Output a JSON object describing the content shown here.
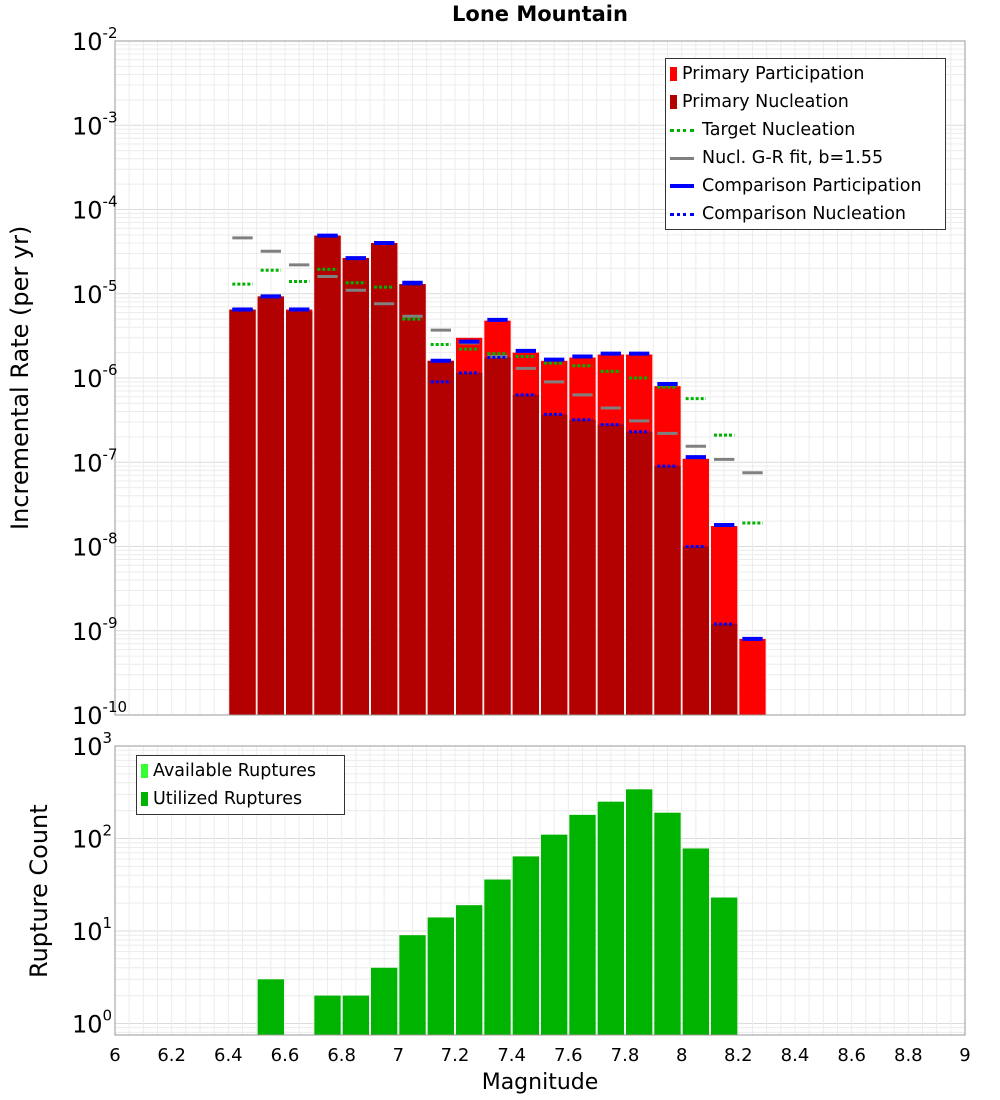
{
  "title": "Lone Mountain",
  "chart_data": [
    {
      "type": "bar",
      "title": "Lone Mountain",
      "xlabel": "Magnitude",
      "ylabel": "Incremental Rate (per yr)",
      "y_scale": "log",
      "xlim": [
        6,
        9
      ],
      "ylim": [
        1e-10,
        0.01
      ],
      "x_ticks": [
        "6",
        "6.2",
        "6.4",
        "6.6",
        "6.8",
        "7",
        "7.2",
        "7.4",
        "7.6",
        "7.8",
        "8",
        "8.2",
        "8.4",
        "8.6",
        "8.8",
        "9"
      ],
      "y_tick_exponents": [
        "-10",
        "-9",
        "-8",
        "-7",
        "-6",
        "-5",
        "-4",
        "-3",
        "-2"
      ],
      "grid": true,
      "legend_position": "top-right",
      "bin_width": 0.1,
      "x": [
        6.45,
        6.55,
        6.65,
        6.75,
        6.85,
        6.95,
        7.05,
        7.15,
        7.25,
        7.35,
        7.45,
        7.55,
        7.65,
        7.75,
        7.85,
        7.95,
        8.05,
        8.15,
        8.25
      ],
      "series": [
        {
          "name": "Primary Participation",
          "style": "bar",
          "color": "#ff0000",
          "values": [
            6.5e-06,
            9.3e-06,
            6.5e-06,
            4.9e-05,
            2.65e-05,
            4e-05,
            1.3e-05,
            1.6e-06,
            3e-06,
            4.8e-06,
            2e-06,
            1.6e-06,
            1.75e-06,
            1.9e-06,
            1.9e-06,
            8e-07,
            1.1e-07,
            1.75e-08,
            8e-10
          ]
        },
        {
          "name": "Primary Nucleation",
          "style": "bar",
          "color": "#b30000",
          "values": [
            6.5e-06,
            9.3e-06,
            6.2e-06,
            4.9e-05,
            2.65e-05,
            4e-05,
            1.3e-05,
            1.6e-06,
            1.15e-06,
            1.75e-06,
            6.3e-07,
            3.7e-07,
            3.2e-07,
            2.8e-07,
            2.3e-07,
            9e-08,
            1e-08,
            1.2e-09,
            null
          ]
        },
        {
          "name": "Target Nucleation",
          "style": "dotted-segment",
          "color": "#00b300",
          "values": [
            1.3e-05,
            1.9e-05,
            1.4e-05,
            1.95e-05,
            1.35e-05,
            1.2e-05,
            5e-06,
            2.5e-06,
            2.2e-06,
            1.95e-06,
            1.8e-06,
            1.5e-06,
            1.4e-06,
            1.2e-06,
            1e-06,
            7.8e-07,
            5.7e-07,
            2.1e-07,
            1.9e-08
          ]
        },
        {
          "name": "Nucl. G-R fit, b=1.55",
          "style": "segment",
          "color": "#808080",
          "values": [
            4.6e-05,
            3.2e-05,
            2.2e-05,
            1.6e-05,
            1.1e-05,
            7.6e-06,
            5.4e-06,
            3.7e-06,
            2.6e-06,
            1.8e-06,
            1.3e-06,
            9e-07,
            6.3e-07,
            4.4e-07,
            3.1e-07,
            2.2e-07,
            1.55e-07,
            1.08e-07,
            7.5e-08
          ]
        },
        {
          "name": "Comparison Participation",
          "style": "segment",
          "color": "#0000ff",
          "values": [
            6.5e-06,
            9.3e-06,
            6.5e-06,
            4.9e-05,
            2.65e-05,
            4e-05,
            1.35e-05,
            1.6e-06,
            2.7e-06,
            4.9e-06,
            2.1e-06,
            1.65e-06,
            1.8e-06,
            1.95e-06,
            1.95e-06,
            8.5e-07,
            1.15e-07,
            1.8e-08,
            8e-10
          ]
        },
        {
          "name": "Comparison Nucleation",
          "style": "dotted-segment",
          "color": "#0000ff",
          "values": [
            6.5e-06,
            9.3e-06,
            6.5e-06,
            4.9e-05,
            2.65e-05,
            4e-05,
            1.3e-05,
            9e-07,
            1.15e-06,
            1.75e-06,
            6.3e-07,
            3.7e-07,
            3.2e-07,
            2.8e-07,
            2.3e-07,
            9e-08,
            1e-08,
            1.2e-09,
            null
          ]
        }
      ]
    },
    {
      "type": "bar",
      "xlabel": "Magnitude",
      "ylabel": "Rupture Count",
      "y_scale": "log",
      "xlim": [
        6,
        9
      ],
      "ylim": [
        0.75,
        1000
      ],
      "x_ticks": [
        "6",
        "6.2",
        "6.4",
        "6.6",
        "6.8",
        "7",
        "7.2",
        "7.4",
        "7.6",
        "7.8",
        "8",
        "8.2",
        "8.4",
        "8.6",
        "8.8",
        "9"
      ],
      "y_tick_exponents": [
        "0",
        "1",
        "2",
        "3"
      ],
      "grid": true,
      "legend_position": "top-left",
      "bin_width": 0.1,
      "x": [
        6.55,
        6.75,
        6.85,
        6.95,
        7.05,
        7.15,
        7.25,
        7.35,
        7.45,
        7.55,
        7.65,
        7.75,
        7.85,
        7.95,
        8.05,
        8.15
      ],
      "series": [
        {
          "name": "Available Ruptures",
          "style": "bar",
          "color": "#33ff33",
          "values": [
            3,
            2,
            2,
            4,
            9,
            14,
            19,
            36,
            64,
            110,
            180,
            250,
            340,
            190,
            78,
            23
          ]
        },
        {
          "name": "Utilized Ruptures",
          "style": "bar",
          "color": "#00b300",
          "values": [
            3,
            2,
            2,
            4,
            9,
            14,
            19,
            36,
            64,
            110,
            180,
            250,
            340,
            190,
            78,
            23
          ]
        }
      ]
    }
  ]
}
